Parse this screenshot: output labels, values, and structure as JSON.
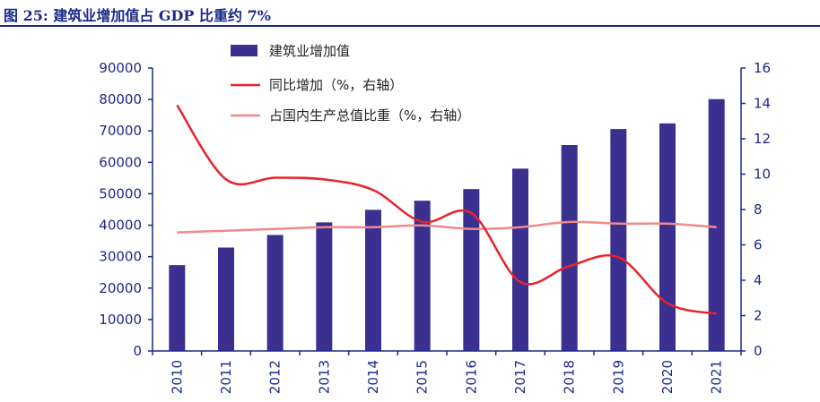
{
  "figure_title": "图 25:  建筑业增加值占 GDP 比重约 7%",
  "colors": {
    "title": "#1a2a8a",
    "bar": "#3b2f8f",
    "yoy_line": "#e8232a",
    "share_line": "#f08a8a",
    "axis": "#1a2a8a"
  },
  "chart_data": {
    "type": "bar",
    "categories": [
      "2010",
      "2011",
      "2012",
      "2013",
      "2014",
      "2015",
      "2016",
      "2017",
      "2018",
      "2019",
      "2020",
      "2021"
    ],
    "series": [
      {
        "name": "建筑业增加值",
        "type": "bar",
        "axis": "left",
        "values": [
          27300,
          32900,
          36900,
          40900,
          44900,
          47800,
          51500,
          58000,
          65500,
          70600,
          72400,
          80100
        ]
      },
      {
        "name": "同比增加（%，右轴）",
        "type": "line",
        "axis": "right",
        "values": [
          13.9,
          9.7,
          9.8,
          9.7,
          9.1,
          7.3,
          7.8,
          3.9,
          4.8,
          5.3,
          2.7,
          2.1
        ]
      },
      {
        "name": "占国内生产总值比重（%，右轴）",
        "type": "line",
        "axis": "right",
        "values": [
          6.7,
          6.8,
          6.9,
          7.0,
          7.0,
          7.1,
          6.9,
          7.0,
          7.3,
          7.2,
          7.2,
          7.0
        ]
      }
    ],
    "y_left": {
      "ylim": [
        0,
        90000
      ],
      "ticks": [
        "0",
        "10000",
        "20000",
        "30000",
        "40000",
        "50000",
        "60000",
        "70000",
        "80000",
        "90000"
      ]
    },
    "y_right": {
      "ylim": [
        0,
        16
      ],
      "ticks": [
        "0",
        "2",
        "4",
        "6",
        "8",
        "10",
        "12",
        "14",
        "16"
      ]
    },
    "legend_position": "top-center",
    "grid": false
  }
}
